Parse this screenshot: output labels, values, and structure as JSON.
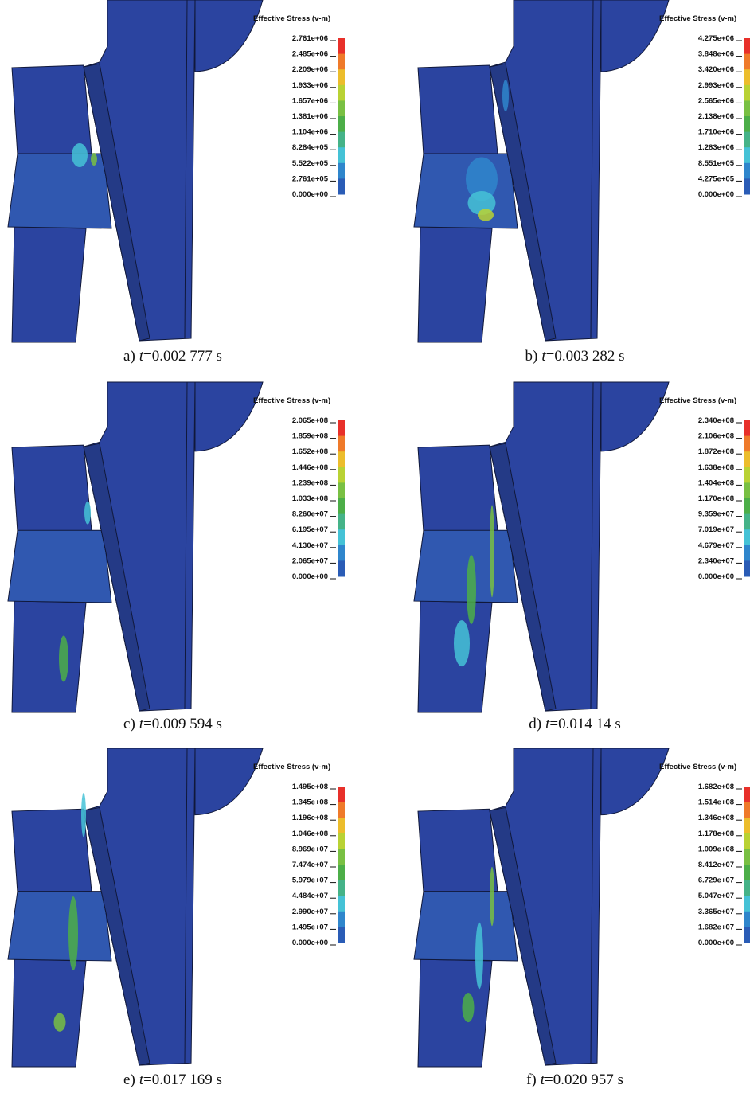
{
  "panels": [
    {
      "caption": {
        "label": "a)",
        "variable": "t",
        "value": "=0.002 777 s"
      },
      "legend": {
        "title": "Effective Stress (v-m)",
        "labels": [
          "2.761e+06",
          "2.485e+06",
          "2.209e+06",
          "1.933e+06",
          "1.657e+06",
          "1.381e+06",
          "1.104e+06",
          "8.284e+05",
          "5.522e+05",
          "2.761e+05",
          "0.000e+00"
        ]
      }
    },
    {
      "caption": {
        "label": "b)",
        "variable": "t",
        "value": "=0.003 282 s"
      },
      "legend": {
        "title": "Effective Stress (v-m)",
        "labels": [
          "4.275e+06",
          "3.848e+06",
          "3.420e+06",
          "2.993e+06",
          "2.565e+06",
          "2.138e+06",
          "1.710e+06",
          "1.283e+06",
          "8.551e+05",
          "4.275e+05",
          "0.000e+00"
        ]
      }
    },
    {
      "caption": {
        "label": "c)",
        "variable": "t",
        "value": "=0.009 594 s"
      },
      "legend": {
        "title": "Effective Stress (v-m)",
        "labels": [
          "2.065e+08",
          "1.859e+08",
          "1.652e+08",
          "1.446e+08",
          "1.239e+08",
          "1.033e+08",
          "8.260e+07",
          "6.195e+07",
          "4.130e+07",
          "2.065e+07",
          "0.000e+00"
        ]
      }
    },
    {
      "caption": {
        "label": "d)",
        "variable": "t",
        "value": "=0.014 14 s"
      },
      "legend": {
        "title": "Effective Stress (v-m)",
        "labels": [
          "2.340e+08",
          "2.106e+08",
          "1.872e+08",
          "1.638e+08",
          "1.404e+08",
          "1.170e+08",
          "9.359e+07",
          "7.019e+07",
          "4.679e+07",
          "2.340e+07",
          "0.000e+00"
        ]
      }
    },
    {
      "caption": {
        "label": "e)",
        "variable": "t",
        "value": "=0.017 169 s"
      },
      "legend": {
        "title": "Effective Stress (v-m)",
        "labels": [
          "1.495e+08",
          "1.345e+08",
          "1.196e+08",
          "1.046e+08",
          "8.969e+07",
          "7.474e+07",
          "5.979e+07",
          "4.484e+07",
          "2.990e+07",
          "1.495e+07",
          "0.000e+00"
        ]
      }
    },
    {
      "caption": {
        "label": "f)",
        "variable": "t",
        "value": "=0.020 957 s"
      },
      "legend": {
        "title": "Effective Stress (v-m)",
        "labels": [
          "1.682e+08",
          "1.514e+08",
          "1.346e+08",
          "1.178e+08",
          "1.009e+08",
          "8.412e+07",
          "6.729e+07",
          "5.047e+07",
          "3.365e+07",
          "1.682e+07",
          "0.000e+00"
        ]
      }
    }
  ]
}
